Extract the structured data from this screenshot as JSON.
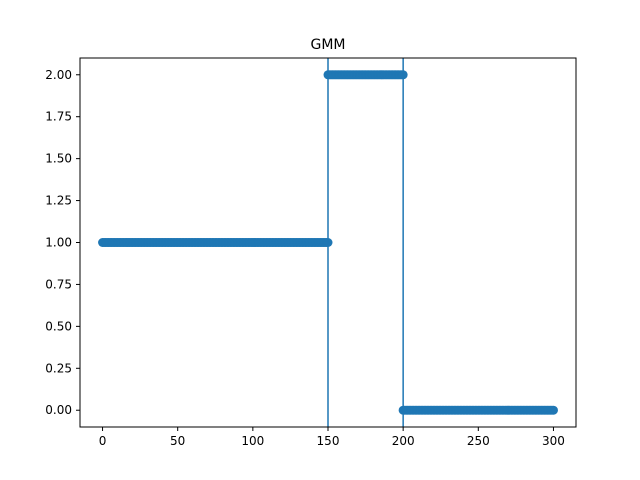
{
  "chart_data": {
    "type": "scatter",
    "title": "GMM",
    "xlabel": "",
    "ylabel": "",
    "xlim": [
      -15,
      315
    ],
    "ylim": [
      -0.1,
      2.1
    ],
    "xticks": [
      0,
      50,
      100,
      150,
      200,
      250,
      300
    ],
    "xtick_labels": [
      "0",
      "50",
      "100",
      "150",
      "200",
      "250",
      "300"
    ],
    "yticks": [
      0.0,
      0.25,
      0.5,
      0.75,
      1.0,
      1.25,
      1.5,
      1.75,
      2.0
    ],
    "ytick_labels": [
      "0.00",
      "0.25",
      "0.50",
      "0.75",
      "1.00",
      "1.25",
      "1.50",
      "1.75",
      "2.00"
    ],
    "grid": false,
    "vlines": [
      150,
      200
    ],
    "series": [
      {
        "color": "#1f77b4",
        "segments": [
          {
            "x_start": 0,
            "x_end": 150,
            "y": 1
          },
          {
            "x_start": 150,
            "x_end": 200,
            "y": 2
          },
          {
            "x_start": 200,
            "x_end": 300,
            "y": 0
          }
        ]
      }
    ],
    "colors": {
      "series": "#1f77b4",
      "vline": "#1f77b4",
      "axes": "#000000"
    }
  }
}
